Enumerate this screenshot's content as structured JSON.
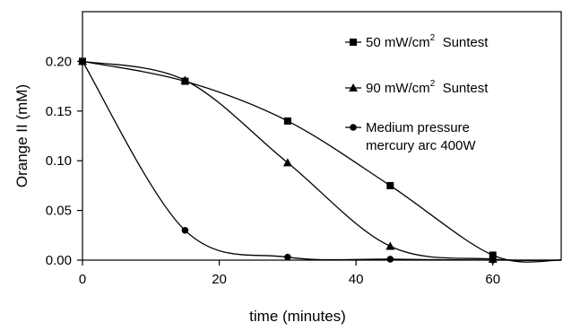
{
  "chart_data": {
    "type": "line",
    "xlabel": "time (minutes)",
    "ylabel": "Orange II (mM)",
    "xlim": [
      0,
      70
    ],
    "ylim": [
      0,
      0.25
    ],
    "x_ticks": [
      0,
      20,
      40,
      60
    ],
    "x_tick_labels": [
      "0",
      "20",
      "40",
      "60"
    ],
    "y_ticks": [
      0,
      0.05,
      0.1,
      0.15,
      0.2
    ],
    "y_tick_labels": [
      "0.00",
      "0.05",
      "0.10",
      "0.15",
      "0.20"
    ],
    "grid": false,
    "legend_position": "top-right",
    "series": [
      {
        "name": "50 mW/cm2 Suntest",
        "name_main": "50 mW/cm",
        "name_sup": "2",
        "name_tail": "  Suntest",
        "marker": "square",
        "x": [
          0,
          15,
          30,
          45,
          60
        ],
        "y": [
          0.2,
          0.18,
          0.14,
          0.075,
          0.005
        ],
        "curve_extension": [
          70,
          0.0
        ]
      },
      {
        "name": "90 mW/cm2 Suntest",
        "name_main": "90 mW/cm",
        "name_sup": "2",
        "name_tail": "  Suntest",
        "marker": "triangle",
        "x": [
          0,
          15,
          30,
          45,
          60
        ],
        "y": [
          0.2,
          0.181,
          0.098,
          0.014,
          0.001
        ],
        "curve_extension": [
          70,
          0.0
        ]
      },
      {
        "name": "Medium pressure mercury arc 400W",
        "name_line1": "Medium pressure",
        "name_line2": "mercury arc 400W",
        "marker": "circle",
        "x": [
          0,
          15,
          30,
          45,
          60
        ],
        "y": [
          0.2,
          0.03,
          0.003,
          0.001,
          0.0
        ],
        "curve_extension": [
          70,
          0.0
        ]
      }
    ]
  }
}
